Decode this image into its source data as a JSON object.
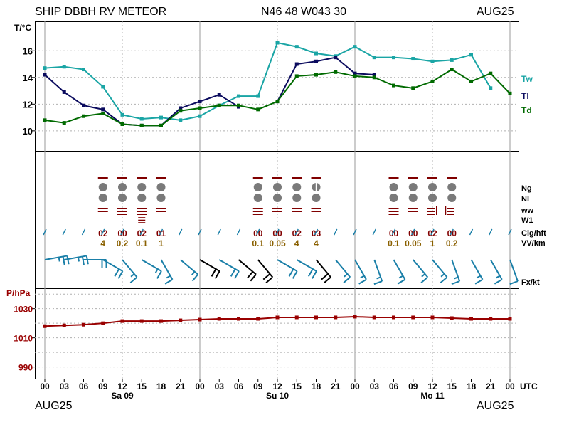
{
  "header": {
    "station": "SHIP DBBH RV METEOR",
    "position": "N46 48 W043 30",
    "date_top": "AUG25",
    "date_bottom_left": "AUG25",
    "date_bottom_right": "AUG25"
  },
  "colors": {
    "Tw": "#1aa5a5",
    "Tl": "#0b0b5e",
    "Td": "#006a00",
    "pressure": "#990000",
    "wind": "#1a7fa8",
    "wind_strong": "#000000",
    "cloud_symbol": "#7a7a7a",
    "code_red": "#800000",
    "code_vv": "#8a6000"
  },
  "chart_data": [
    {
      "type": "line",
      "title": "",
      "ylabel": "T/°C",
      "ylim": [
        8.5,
        18.2
      ],
      "yticks": [
        "10",
        "12",
        "14",
        "16"
      ],
      "x_hours": [
        0,
        3,
        6,
        9,
        12,
        15,
        18,
        21,
        24,
        27,
        30,
        33,
        36,
        39,
        42,
        45,
        48,
        51,
        54,
        57,
        60,
        63,
        66,
        69,
        72
      ],
      "series": [
        {
          "name": "Tw",
          "values": [
            14.7,
            14.8,
            14.6,
            13.3,
            11.2,
            10.9,
            11.0,
            10.8,
            11.1,
            11.9,
            12.6,
            12.6,
            16.6,
            16.3,
            15.8,
            15.6,
            16.3,
            15.5,
            15.5,
            15.4,
            15.2,
            15.3,
            15.7,
            13.2,
            null
          ]
        },
        {
          "name": "Tl",
          "values": [
            14.2,
            12.9,
            11.9,
            11.6,
            10.5,
            10.4,
            10.4,
            11.7,
            12.2,
            12.7,
            11.8,
            null,
            12.2,
            15.0,
            15.2,
            15.5,
            14.3,
            14.2,
            null,
            null,
            null,
            null,
            null,
            null,
            null
          ]
        },
        {
          "name": "Td",
          "values": [
            10.8,
            10.6,
            11.1,
            11.3,
            10.5,
            10.4,
            10.4,
            11.5,
            11.7,
            11.9,
            11.9,
            11.6,
            12.2,
            14.1,
            14.2,
            14.4,
            14.1,
            14.0,
            13.4,
            13.2,
            13.7,
            14.6,
            13.7,
            14.3,
            12.8
          ]
        }
      ]
    },
    {
      "type": "line",
      "title": "",
      "ylabel": "P/hPa",
      "ylim": [
        982,
        1044
      ],
      "yticks": [
        "990",
        "1010",
        "1030"
      ],
      "x_hours": [
        0,
        3,
        6,
        9,
        12,
        15,
        18,
        21,
        24,
        27,
        30,
        33,
        36,
        39,
        42,
        45,
        48,
        51,
        54,
        57,
        60,
        63,
        66,
        69,
        72
      ],
      "series": [
        {
          "name": "P",
          "values": [
            1018,
            1018.5,
            1019,
            1020,
            1021.5,
            1021.5,
            1021.5,
            1022,
            1022.5,
            1023,
            1023,
            1023,
            1024,
            1024,
            1024,
            1024,
            1024.5,
            1024,
            1024,
            1024,
            1024,
            1023.5,
            1023,
            1023,
            1023
          ]
        }
      ]
    }
  ],
  "x_axis": {
    "ticks": [
      "00",
      "03",
      "06",
      "09",
      "12",
      "15",
      "18",
      "21",
      "00",
      "03",
      "06",
      "09",
      "12",
      "15",
      "18",
      "21",
      "00",
      "03",
      "06",
      "09",
      "12",
      "15",
      "18",
      "21",
      "00"
    ],
    "unit": "UTC",
    "days": [
      "Sa 09",
      "Su 10",
      "Mo 11"
    ]
  },
  "middle_panel": {
    "row_labels": [
      "Ng",
      "Nl",
      "ww",
      "W1",
      "Clg/hft",
      "VV/km",
      "Fx/kt"
    ],
    "obs_hours": [
      9,
      12,
      15,
      18,
      33,
      36,
      39,
      42,
      54,
      57,
      60,
      63
    ],
    "cloud_cover": [
      "full",
      "full",
      "full",
      "full",
      "full",
      "full",
      "full",
      "half",
      "full",
      "full",
      "full",
      "full"
    ],
    "ww_symbol": [
      "eq",
      "eq3",
      "eq3",
      "eq",
      "eq3",
      "eq",
      "eq",
      "eq",
      "eq3",
      "eq",
      "rb",
      "lb"
    ],
    "clg": [
      "02",
      "00",
      "02",
      "01",
      "00",
      "00",
      "02",
      "03",
      "00",
      "00",
      "02",
      "00"
    ],
    "vv": [
      "4",
      "0.2",
      "0.1",
      "1",
      "0.1",
      "0.05",
      "4",
      "4",
      "0.1",
      "0.05",
      "1",
      "0.2"
    ],
    "wind_kt": [
      25,
      25,
      25,
      25,
      25,
      25,
      25,
      25,
      25,
      25,
      25,
      25,
      25,
      25,
      25,
      25,
      25,
      25,
      25,
      25,
      25,
      25,
      25,
      25,
      25
    ],
    "wind_dir_deg": [
      260,
      260,
      270,
      300,
      320,
      300,
      330,
      310,
      300,
      300,
      310,
      320,
      300,
      300,
      320,
      320,
      330,
      340,
      330,
      320,
      320,
      340,
      330,
      330,
      340
    ],
    "wind_strong_flags": [
      false,
      false,
      false,
      false,
      false,
      false,
      false,
      false,
      true,
      false,
      true,
      true,
      false,
      false,
      true,
      false,
      false,
      false,
      false,
      false,
      false,
      false,
      false,
      false,
      false
    ],
    "wind_speed_kt": [
      28,
      26,
      23,
      20,
      17,
      16,
      15,
      15,
      23,
      22,
      22,
      22,
      21,
      21,
      20,
      19,
      18,
      18,
      17,
      17,
      16,
      16,
      15,
      15,
      14
    ]
  }
}
